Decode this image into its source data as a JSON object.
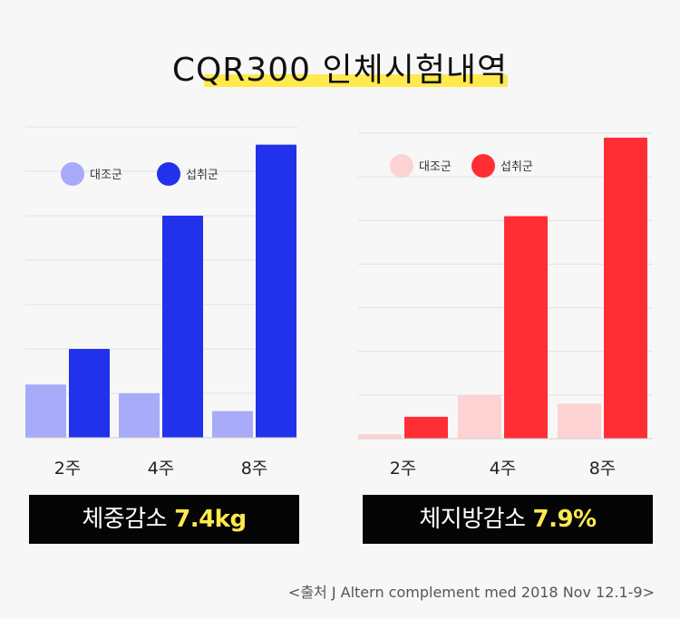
{
  "title": "CQR300 인체시험내역",
  "source": "<출처 J Altern complement med 2018 Nov 12.1-9>",
  "chart_data": [
    {
      "type": "bar",
      "categories": [
        "2주",
        "4주",
        "8주"
      ],
      "series": [
        {
          "name": "대조군",
          "values": [
            1.2,
            1.0,
            0.6
          ],
          "color": "#a7abf8"
        },
        {
          "name": "섭취군",
          "values": [
            2.0,
            5.0,
            6.6
          ],
          "color": "#2231ec"
        }
      ],
      "ylim": [
        0,
        7
      ],
      "grid": true,
      "legend": "top-left",
      "summary_label": "체중감소",
      "summary_value": "7.4kg"
    },
    {
      "type": "bar",
      "categories": [
        "2주",
        "4주",
        "8주"
      ],
      "series": [
        {
          "name": "대조군",
          "values": [
            0.1,
            1.0,
            0.8
          ],
          "color": "#fdd2d2"
        },
        {
          "name": "섭취군",
          "values": [
            0.5,
            5.1,
            6.9
          ],
          "color": "#ff2e34"
        }
      ],
      "ylim": [
        0,
        7
      ],
      "grid": true,
      "legend": "top-left",
      "summary_label": "체지방감소",
      "summary_value": "7.9%"
    }
  ]
}
